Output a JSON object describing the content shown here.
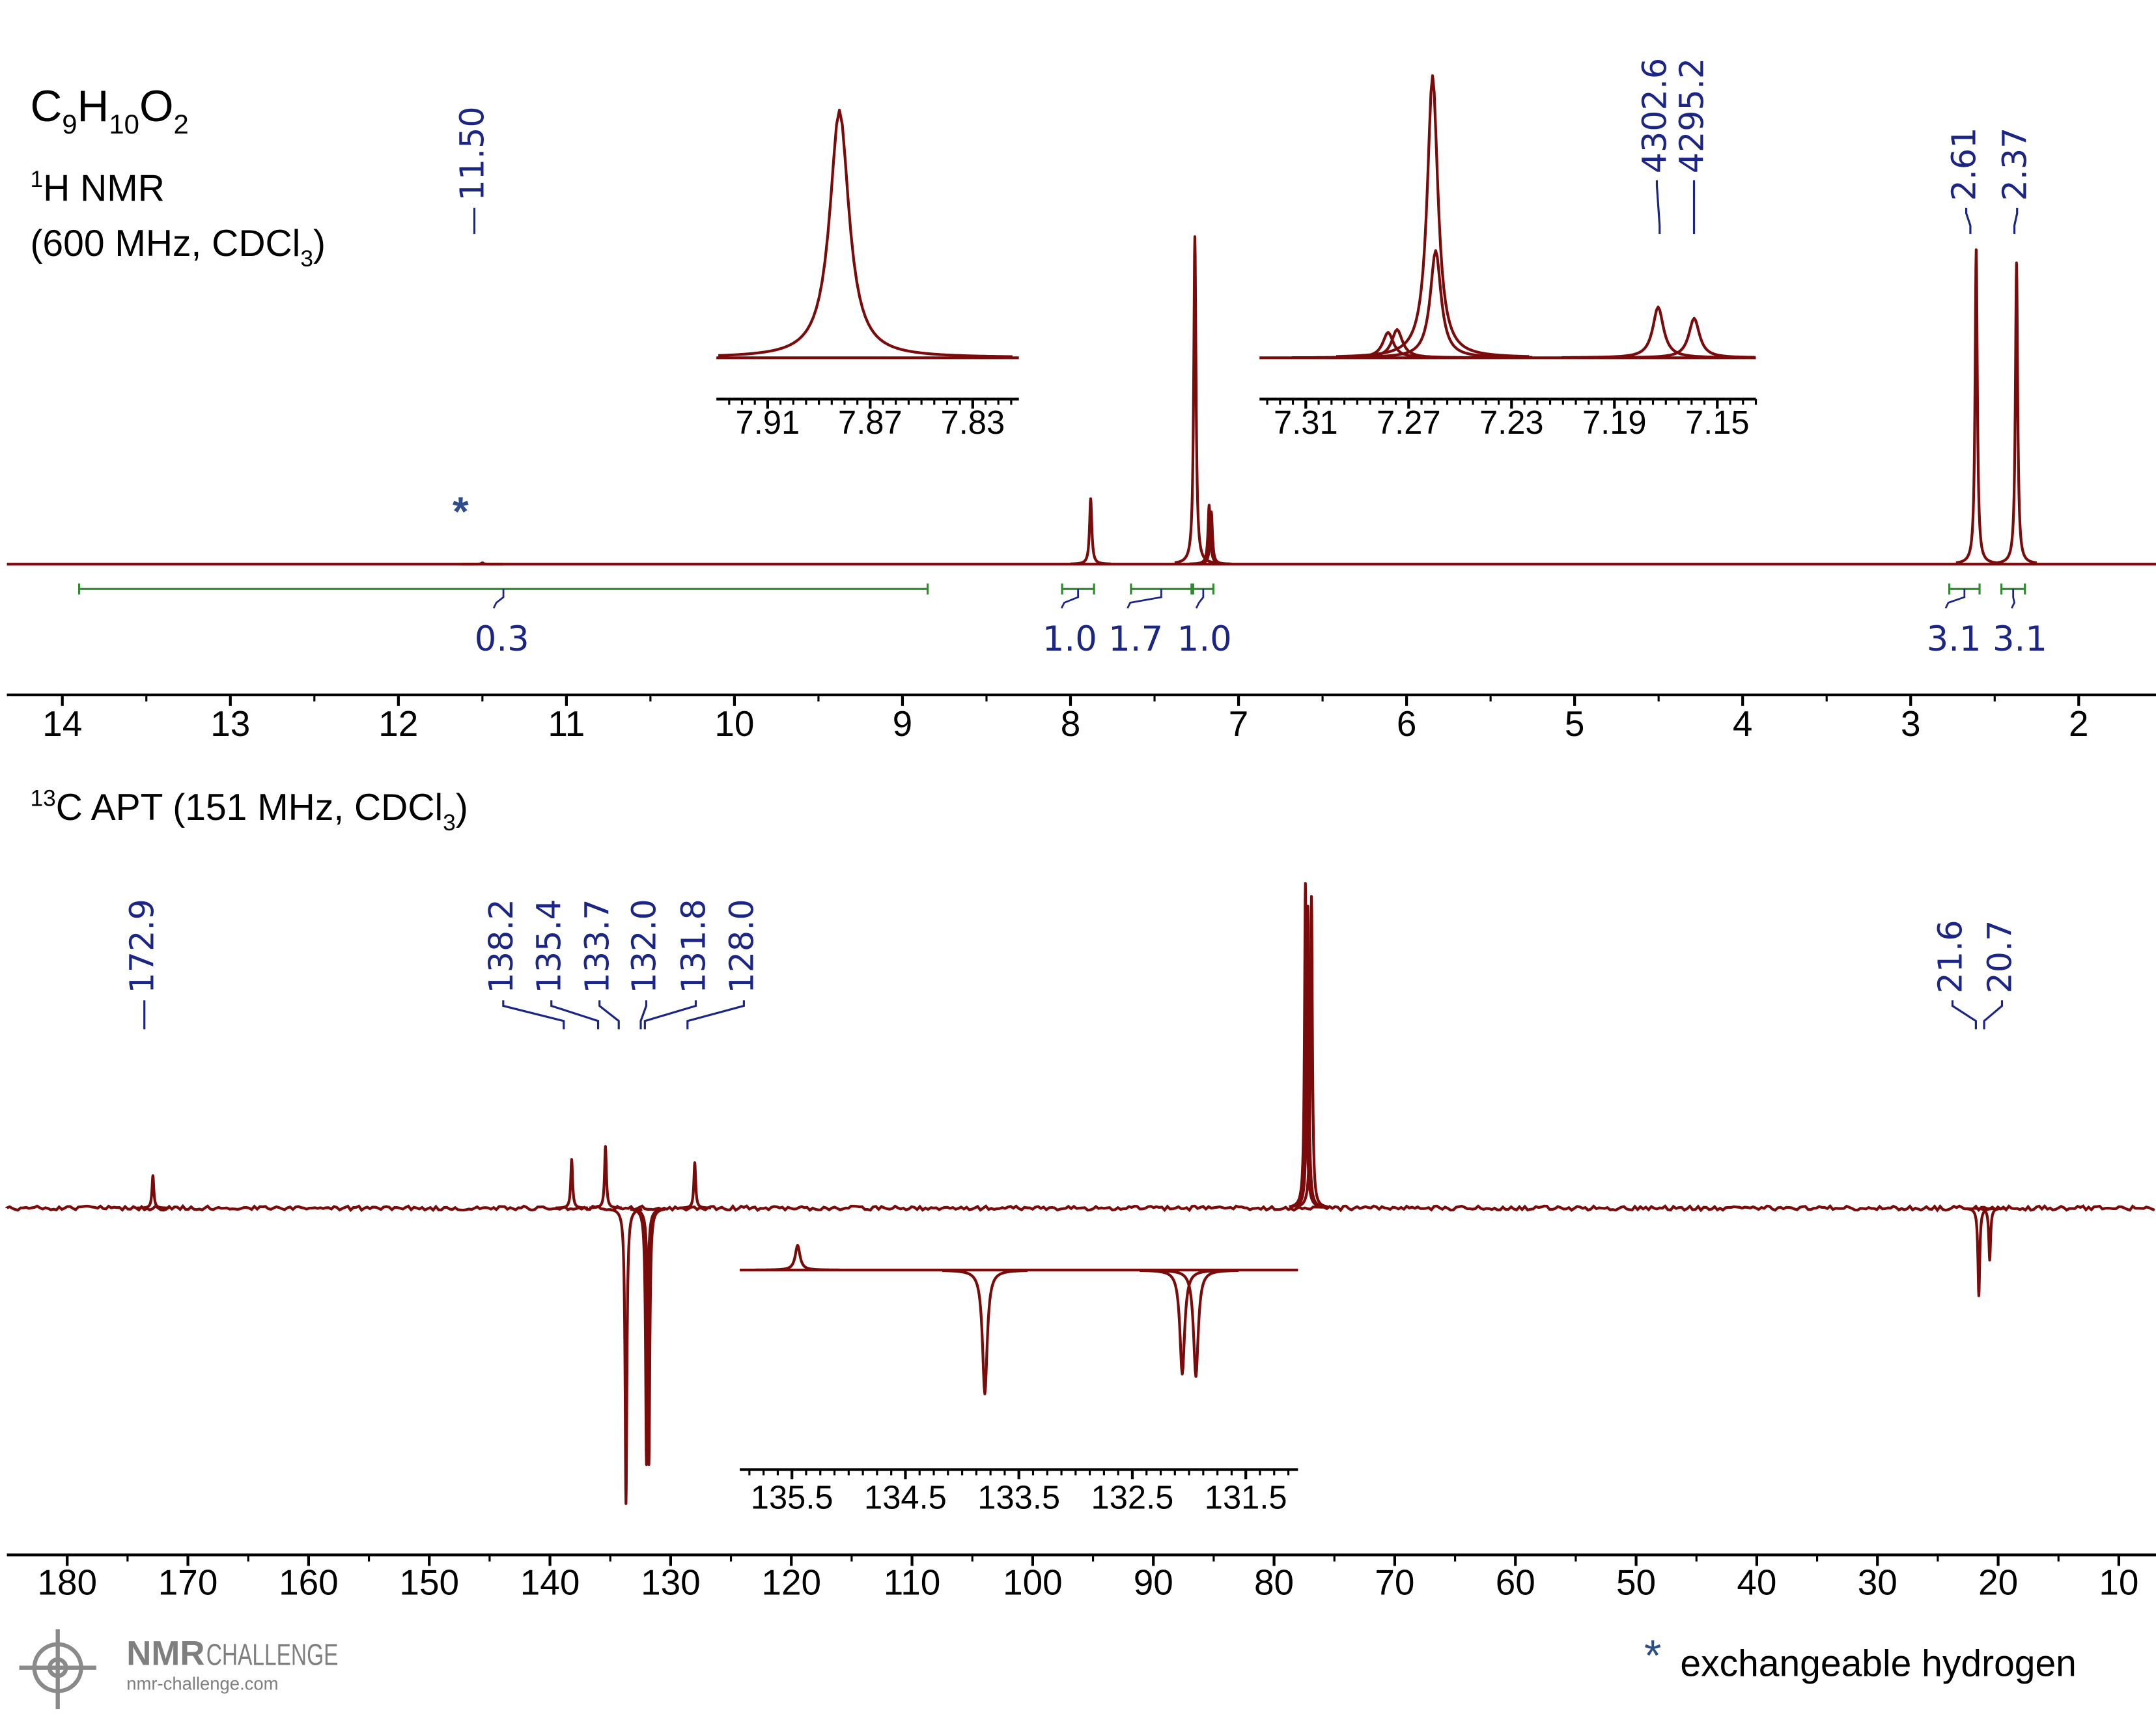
{
  "header": {
    "formula": [
      "C",
      "9",
      "H",
      "10",
      "O",
      "2"
    ],
    "h1_nucleus": [
      "1",
      "H NMR"
    ],
    "h1_conditions": [
      "(600 MHz, CDCl",
      "3",
      ")"
    ],
    "c13_title": [
      "13",
      "C APT (151 MHz, CDCl",
      "3",
      ")"
    ],
    "exchangeable_marker": "*"
  },
  "footer": {
    "note_marker": "*",
    "note": "exchangeable hydrogen",
    "logo_name": "NMR",
    "logo_sub": "CHALLENGE",
    "logo_url": "nmr-challenge.com"
  },
  "chart_data": [
    {
      "type": "spectrum",
      "xlim": [
        14.33,
        1.54
      ],
      "xticks": [
        14,
        13,
        12,
        11,
        10,
        9,
        8,
        7,
        6,
        5,
        4,
        3,
        2
      ],
      "color": "#7b0a0a",
      "peaks": [
        {
          "ppm": 11.5,
          "height": 0.4
        },
        {
          "ppm": 7.88,
          "height": 20
        },
        {
          "ppm": 7.26,
          "height": 100
        },
        {
          "ppm": 7.175,
          "height": 18
        },
        {
          "ppm": 7.162,
          "height": 16
        },
        {
          "ppm": 2.61,
          "height": 96
        },
        {
          "ppm": 2.37,
          "height": 92
        }
      ],
      "peak_labels": [
        "11.50",
        "4302.6",
        "4295.2",
        "2.61",
        "2.37"
      ],
      "integrals": {
        "ranges": [
          [
            13.9,
            8.85
          ],
          [
            8.05,
            7.86
          ],
          [
            7.64,
            7.28
          ],
          [
            7.27,
            7.15
          ],
          [
            2.77,
            2.59
          ],
          [
            2.46,
            2.32
          ]
        ],
        "values": [
          0.3,
          1,
          1.7,
          1,
          3.1,
          3.1
        ],
        "value_labels": [
          "0.3",
          "1.0",
          "1.7",
          "1.0",
          "3.1",
          "3.1"
        ],
        "color": "#2e8b2e"
      }
    },
    {
      "type": "spectrum",
      "xlim": [
        7.93,
        7.812
      ],
      "xticks": [
        7.91,
        7.87,
        7.83
      ],
      "color": "#7b0a0a",
      "peaks": [
        {
          "ppm": 7.882,
          "height": 100
        }
      ]
    },
    {
      "type": "spectrum",
      "xlim": [
        7.328,
        7.135
      ],
      "xticks": [
        7.31,
        7.27,
        7.23,
        7.19,
        7.15
      ],
      "color": "#7b0a0a",
      "peaks": [
        {
          "ppm": 7.278,
          "height": 9
        },
        {
          "ppm": 7.2745,
          "height": 10
        },
        {
          "ppm": 7.2607,
          "height": 100
        },
        {
          "ppm": 7.2595,
          "height": 38
        },
        {
          "ppm": 7.173,
          "height": 18
        },
        {
          "ppm": 7.159,
          "height": 14
        }
      ]
    },
    {
      "type": "spectrum",
      "xlim": [
        185,
        6.92
      ],
      "xticks": [
        180,
        170,
        160,
        150,
        140,
        130,
        120,
        110,
        100,
        90,
        80,
        70,
        60,
        50,
        40,
        30,
        20,
        10
      ],
      "color": "#7b0a0a",
      "peaks": [
        {
          "ppm": 172.9,
          "height": 10
        },
        {
          "ppm": 138.2,
          "height": 15
        },
        {
          "ppm": 135.4,
          "height": 19
        },
        {
          "ppm": 133.7,
          "height": -91
        },
        {
          "ppm": 132.0,
          "height": -79
        },
        {
          "ppm": 131.8,
          "height": -79
        },
        {
          "ppm": 128.0,
          "height": 14
        },
        {
          "ppm": 77.4,
          "height": 100
        },
        {
          "ppm": 77.2,
          "height": 93
        },
        {
          "ppm": 76.9,
          "height": 96
        },
        {
          "ppm": 21.6,
          "height": -27
        },
        {
          "ppm": 20.7,
          "height": -16
        }
      ],
      "peak_labels": [
        "172.9",
        "138.2",
        "135.4",
        "133.7",
        "132.0",
        "131.8",
        "128.0",
        "21.6",
        "20.7"
      ]
    },
    {
      "type": "spectrum",
      "xlim": [
        135.96,
        131.04
      ],
      "xticks": [
        135.5,
        134.5,
        133.5,
        132.5,
        131.5
      ],
      "color": "#7b0a0a",
      "peaks": [
        {
          "ppm": 135.45,
          "height": 20
        },
        {
          "ppm": 133.8,
          "height": -100
        },
        {
          "ppm": 132.06,
          "height": -84
        },
        {
          "ppm": 131.94,
          "height": -86
        }
      ]
    }
  ]
}
